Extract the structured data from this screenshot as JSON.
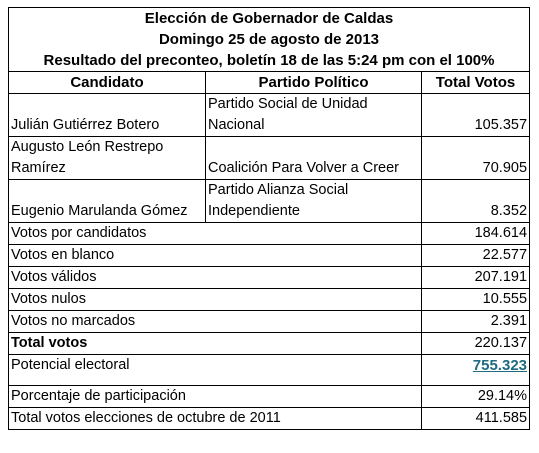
{
  "title": {
    "line1": "Elección de Gobernador de Caldas",
    "line2": "Domingo 25 de agosto de 2013",
    "line3": "Resultado del preconteo, boletín 18 de las 5:24 pm con el 100%"
  },
  "headers": {
    "candidate": "Candidato",
    "party": "Partido Político",
    "total": "Total Votos"
  },
  "candidates": [
    {
      "name": "Julián Gutiérrez Botero",
      "party": "Partido Social de Unidad Nacional",
      "votes": "105.357"
    },
    {
      "name": "Augusto León Restrepo Ramírez",
      "party": "Coalición Para Volver a Creer",
      "votes": "70.905"
    },
    {
      "name": "Eugenio Marulanda Gómez",
      "party": " Partido Alianza Social Independiente",
      "votes": "8.352"
    }
  ],
  "summary": {
    "por_candidatos": {
      "label": "Votos por candidatos",
      "value": "184.614"
    },
    "en_blanco": {
      "label": "Votos en blanco",
      "value": "22.577"
    },
    "validos": {
      "label": "Votos válidos",
      "value": "207.191"
    },
    "nulos": {
      "label": "Votos nulos",
      "value": "10.555"
    },
    "no_marcados": {
      "label": "Votos no marcados",
      "value": "2.391"
    },
    "total": {
      "label": "Total votos",
      "value": "220.137"
    },
    "potencial": {
      "label": "Potencial electoral",
      "value": "755.323"
    },
    "participacion": {
      "label": "Porcentaje de participación",
      "value": "29.14%"
    },
    "octubre_2011": {
      "label": "Total votos elecciones de octubre de 2011",
      "value": "411.585"
    }
  },
  "colors": {
    "link": "#1f6b80",
    "border": "#000000"
  }
}
